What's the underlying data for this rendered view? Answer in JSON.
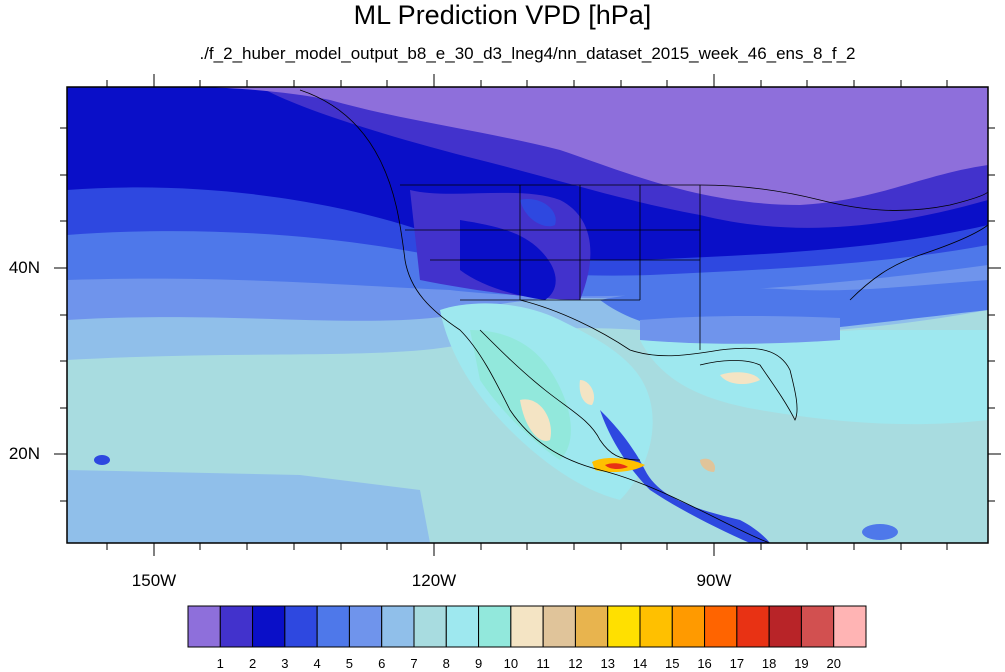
{
  "title": "ML Prediction VPD [hPa]",
  "subtitle": "./f_2_huber_model_output_b8_e_30_d3_lneg4/nn_dataset_2015_week_46_ens_8_f_2",
  "axes": {
    "lon_labels": [
      "150W",
      "120W",
      "90W"
    ],
    "lat_labels": [
      "40N",
      "20N"
    ]
  },
  "colorbar": {
    "labels": [
      "1",
      "2",
      "3",
      "4",
      "5",
      "6",
      "7",
      "8",
      "9",
      "10",
      "11",
      "12",
      "13",
      "14",
      "15",
      "16",
      "17",
      "18",
      "19",
      "20"
    ],
    "colors": [
      "#8e6fdb",
      "#4232cc",
      "#0a0fc8",
      "#2e48e0",
      "#4e78ea",
      "#6f94ec",
      "#90bfea",
      "#a8dce0",
      "#9ee8ef",
      "#92e8dc",
      "#f4e4c4",
      "#e0c49a",
      "#e8b44e",
      "#ffe000",
      "#ffc000",
      "#ff9a00",
      "#ff6400",
      "#e83214",
      "#b82428",
      "#d25050",
      "#ffb4b4"
    ]
  },
  "chart_data": {
    "type": "heatmap",
    "title": "ML Prediction VPD [hPa]",
    "subtitle": "./f_2_huber_model_output_b8_e_30_d3_lneg4/nn_dataset_2015_week_46_ens_8_f_2",
    "x_ticks": [
      "150W",
      "120W",
      "90W"
    ],
    "y_ticks": [
      "40N",
      "20N"
    ],
    "levels": [
      1,
      2,
      3,
      4,
      5,
      6,
      7,
      8,
      9,
      10,
      11,
      12,
      13,
      14,
      15,
      16,
      17,
      18,
      19,
      20
    ]
  }
}
